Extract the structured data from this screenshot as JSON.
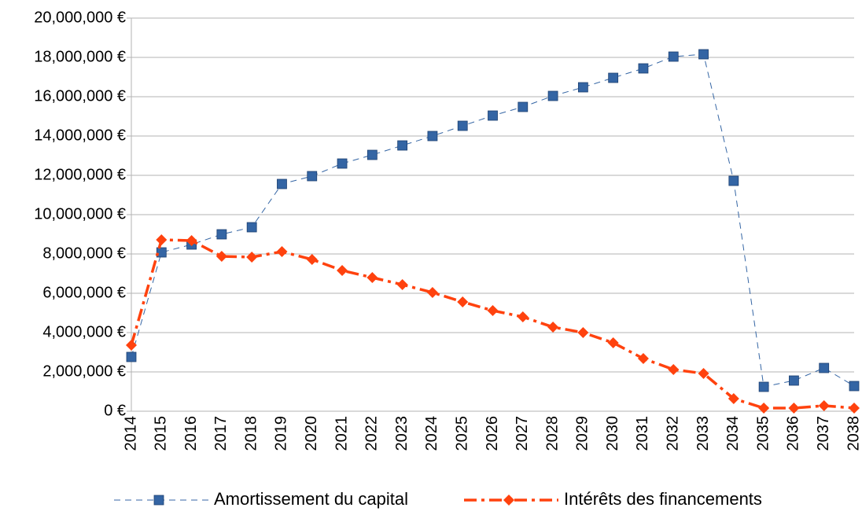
{
  "chart_data": {
    "type": "line",
    "categories": [
      "2014",
      "2015",
      "2016",
      "2017",
      "2018",
      "2019",
      "2020",
      "2021",
      "2022",
      "2023",
      "2024",
      "2025",
      "2026",
      "2027",
      "2028",
      "2029",
      "2030",
      "2031",
      "2032",
      "2033",
      "2034",
      "2035",
      "2036",
      "2037",
      "2038"
    ],
    "series": [
      {
        "name": "Amortissement du capital",
        "color": "#3465a4",
        "values": [
          2760000,
          8080000,
          8480000,
          9000000,
          9360000,
          11560000,
          11960000,
          12600000,
          13040000,
          13520000,
          14000000,
          14520000,
          15040000,
          15480000,
          16040000,
          16480000,
          16960000,
          17440000,
          18040000,
          18160000,
          11720000,
          1240000,
          1560000,
          2200000,
          1280000
        ]
      },
      {
        "name": "Intérêts des financements",
        "color": "#ff420e",
        "values": [
          3360000,
          8720000,
          8680000,
          7880000,
          7840000,
          8120000,
          7720000,
          7160000,
          6800000,
          6440000,
          6040000,
          5560000,
          5120000,
          4800000,
          4280000,
          4000000,
          3480000,
          2680000,
          2120000,
          1920000,
          640000,
          160000,
          160000,
          280000,
          160000
        ]
      }
    ],
    "ylim": [
      0,
      20000000
    ],
    "yticks": [
      {
        "value": 0,
        "label": "0 €"
      },
      {
        "value": 2000000,
        "label": "2,000,000 €"
      },
      {
        "value": 4000000,
        "label": "4,000,000 €"
      },
      {
        "value": 6000000,
        "label": "6,000,000 €"
      },
      {
        "value": 8000000,
        "label": "8,000,000 €"
      },
      {
        "value": 10000000,
        "label": "10,000,000 €"
      },
      {
        "value": 12000000,
        "label": "12,000,000 €"
      },
      {
        "value": 14000000,
        "label": "14,000,000 €"
      },
      {
        "value": 16000000,
        "label": "16,000,000 €"
      },
      {
        "value": 18000000,
        "label": "18,000,000 €"
      },
      {
        "value": 20000000,
        "label": "20,000,000 €"
      }
    ],
    "grid": true,
    "legend": "bottom"
  }
}
